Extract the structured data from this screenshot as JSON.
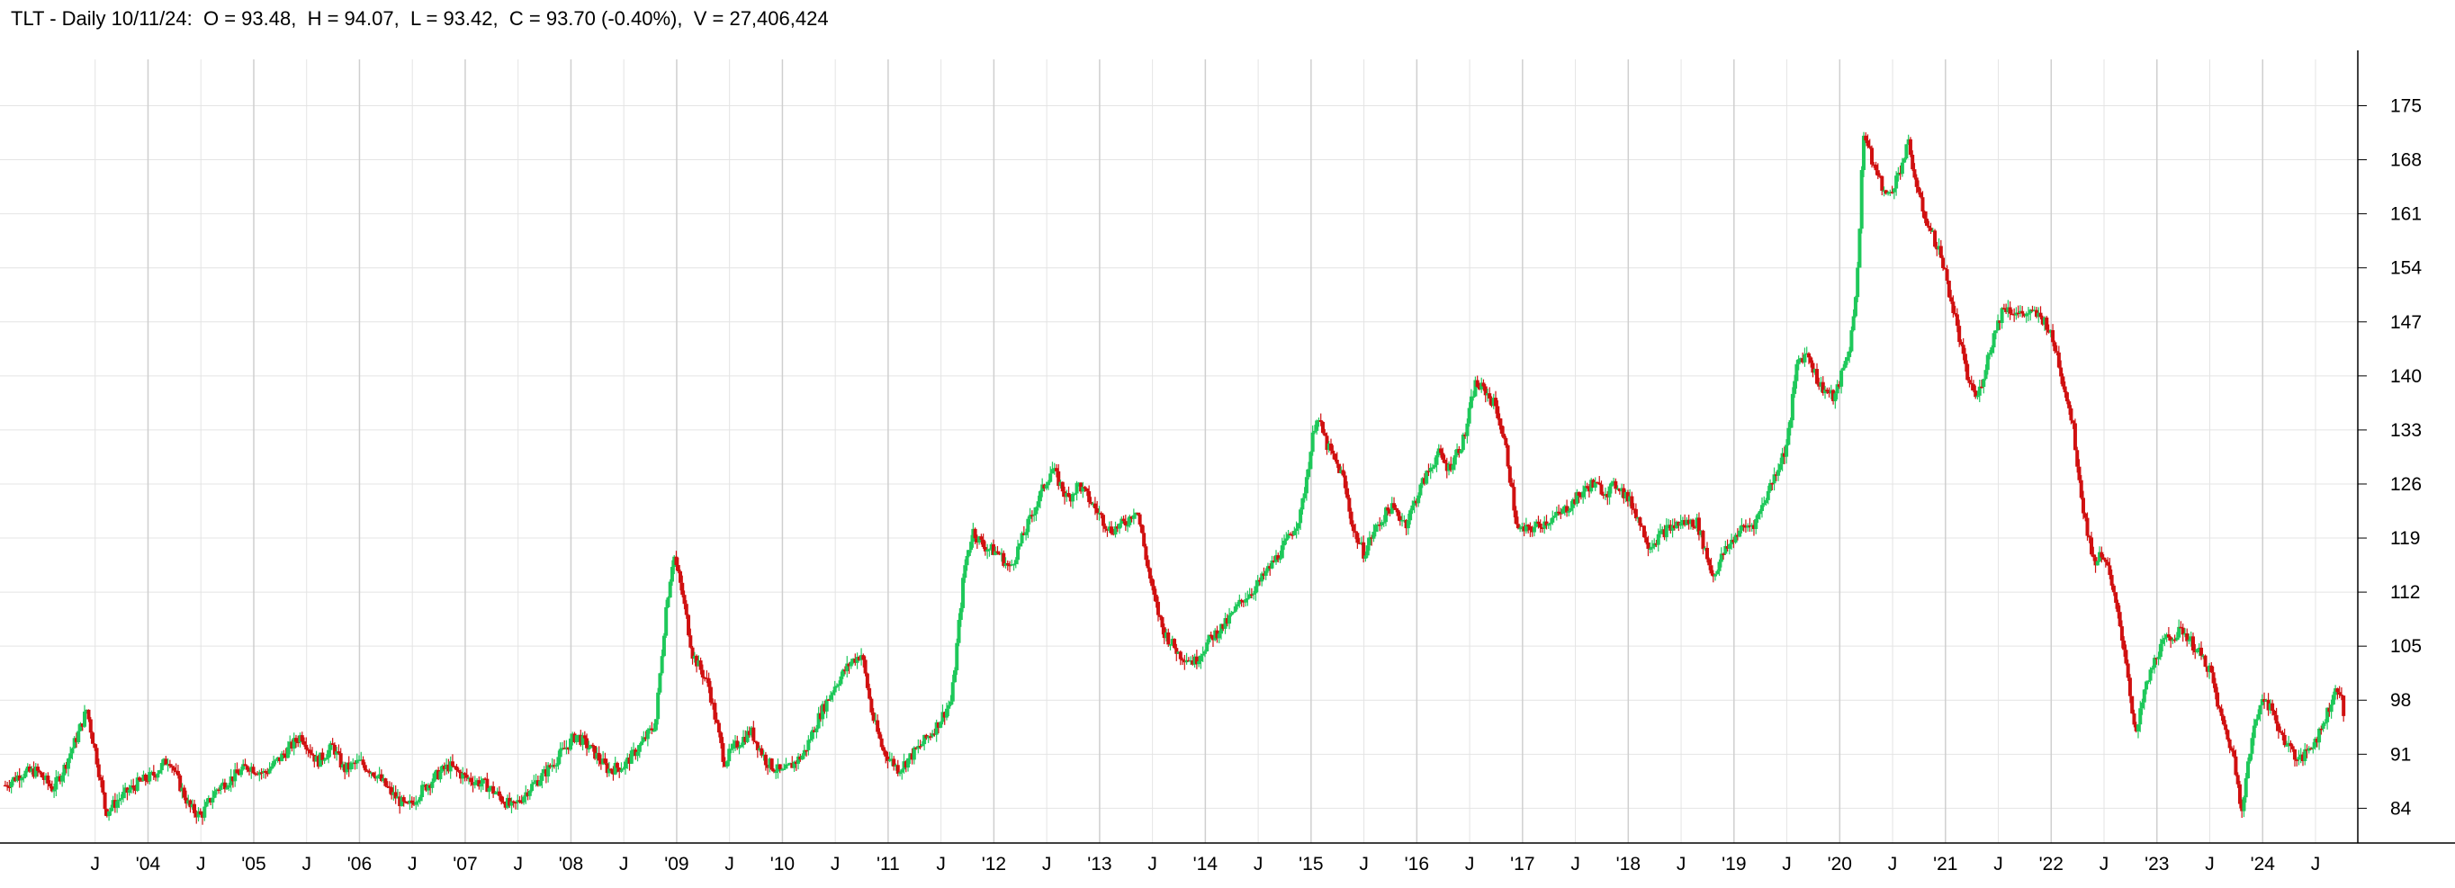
{
  "header": {
    "title": "TLT - Daily 10/11/24:",
    "open": "O = 93.48,",
    "high": "H = 94.07,",
    "low": "L = 93.42,",
    "close": "C = 93.70 (-0.40%),",
    "volume": "V = 27,406,424"
  },
  "colors": {
    "up": "#1ec85a",
    "down": "#d01010",
    "grid": "#e4e4e4",
    "axis": "#000000"
  },
  "chart_data": {
    "type": "candlestick",
    "title": "TLT - Daily 10/11/24:",
    "xlim": [
      2002.6,
      2024.9
    ],
    "ylim": [
      79.5,
      181
    ],
    "y_ticks": [
      175,
      168,
      161,
      154,
      147,
      140,
      133,
      126,
      119,
      112,
      105,
      98,
      91,
      84
    ],
    "x_ticks": [
      {
        "label": "J",
        "x": 2003.5
      },
      {
        "label": "'04",
        "x": 2004.0
      },
      {
        "label": "J",
        "x": 2004.5
      },
      {
        "label": "'05",
        "x": 2005.0
      },
      {
        "label": "J",
        "x": 2005.5
      },
      {
        "label": "'06",
        "x": 2006.0
      },
      {
        "label": "J",
        "x": 2006.5
      },
      {
        "label": "'07",
        "x": 2007.0
      },
      {
        "label": "J",
        "x": 2007.5
      },
      {
        "label": "'08",
        "x": 2008.0
      },
      {
        "label": "J",
        "x": 2008.5
      },
      {
        "label": "'09",
        "x": 2009.0
      },
      {
        "label": "J",
        "x": 2009.5
      },
      {
        "label": "'10",
        "x": 2010.0
      },
      {
        "label": "J",
        "x": 2010.5
      },
      {
        "label": "'11",
        "x": 2011.0
      },
      {
        "label": "J",
        "x": 2011.5
      },
      {
        "label": "'12",
        "x": 2012.0
      },
      {
        "label": "J",
        "x": 2012.5
      },
      {
        "label": "'13",
        "x": 2013.0
      },
      {
        "label": "J",
        "x": 2013.5
      },
      {
        "label": "'14",
        "x": 2014.0
      },
      {
        "label": "J",
        "x": 2014.5
      },
      {
        "label": "'15",
        "x": 2015.0
      },
      {
        "label": "J",
        "x": 2015.5
      },
      {
        "label": "'16",
        "x": 2016.0
      },
      {
        "label": "J",
        "x": 2016.5
      },
      {
        "label": "'17",
        "x": 2017.0
      },
      {
        "label": "J",
        "x": 2017.5
      },
      {
        "label": "'18",
        "x": 2018.0
      },
      {
        "label": "J",
        "x": 2018.5
      },
      {
        "label": "'19",
        "x": 2019.0
      },
      {
        "label": "J",
        "x": 2019.5
      },
      {
        "label": "'20",
        "x": 2020.0
      },
      {
        "label": "J",
        "x": 2020.5
      },
      {
        "label": "'21",
        "x": 2021.0
      },
      {
        "label": "J",
        "x": 2021.5
      },
      {
        "label": "'22",
        "x": 2022.0
      },
      {
        "label": "J",
        "x": 2022.5
      },
      {
        "label": "'23",
        "x": 2023.0
      },
      {
        "label": "J",
        "x": 2023.5
      },
      {
        "label": "'24",
        "x": 2024.0
      },
      {
        "label": "J",
        "x": 2024.5
      }
    ],
    "close_series": [
      [
        2002.65,
        87
      ],
      [
        2002.8,
        88.5
      ],
      [
        2002.95,
        88.8
      ],
      [
        2003.1,
        86.5
      ],
      [
        2003.2,
        89
      ],
      [
        2003.35,
        94
      ],
      [
        2003.42,
        96.8
      ],
      [
        2003.52,
        90
      ],
      [
        2003.6,
        83.5
      ],
      [
        2003.75,
        85.5
      ],
      [
        2003.9,
        87.2
      ],
      [
        2004.05,
        88.3
      ],
      [
        2004.2,
        90.5
      ],
      [
        2004.3,
        87
      ],
      [
        2004.4,
        84
      ],
      [
        2004.5,
        83
      ],
      [
        2004.65,
        86.5
      ],
      [
        2004.8,
        88
      ],
      [
        2004.95,
        89.5
      ],
      [
        2005.1,
        88.5
      ],
      [
        2005.25,
        90.5
      ],
      [
        2005.45,
        93.5
      ],
      [
        2005.6,
        90
      ],
      [
        2005.75,
        92
      ],
      [
        2005.85,
        89
      ],
      [
        2006.0,
        90
      ],
      [
        2006.15,
        88.5
      ],
      [
        2006.3,
        86
      ],
      [
        2006.45,
        84
      ],
      [
        2006.6,
        86.5
      ],
      [
        2006.75,
        88.5
      ],
      [
        2006.85,
        89.5
      ],
      [
        2007.0,
        88
      ],
      [
        2007.2,
        87
      ],
      [
        2007.45,
        84
      ],
      [
        2007.6,
        86.5
      ],
      [
        2007.75,
        88.5
      ],
      [
        2007.9,
        91
      ],
      [
        2008.05,
        93.5
      ],
      [
        2008.2,
        91.5
      ],
      [
        2008.35,
        89
      ],
      [
        2008.5,
        89.5
      ],
      [
        2008.65,
        92
      ],
      [
        2008.8,
        95
      ],
      [
        2008.9,
        110
      ],
      [
        2008.97,
        117
      ],
      [
        2009.05,
        112
      ],
      [
        2009.15,
        104
      ],
      [
        2009.3,
        100
      ],
      [
        2009.45,
        90
      ],
      [
        2009.55,
        92
      ],
      [
        2009.7,
        94
      ],
      [
        2009.85,
        90
      ],
      [
        2010.0,
        88.5
      ],
      [
        2010.2,
        91
      ],
      [
        2010.35,
        96
      ],
      [
        2010.5,
        100
      ],
      [
        2010.65,
        103
      ],
      [
        2010.75,
        104
      ],
      [
        2010.85,
        96
      ],
      [
        2010.95,
        91.5
      ],
      [
        2011.1,
        89
      ],
      [
        2011.3,
        92
      ],
      [
        2011.45,
        94.5
      ],
      [
        2011.6,
        98
      ],
      [
        2011.72,
        115
      ],
      [
        2011.8,
        120
      ],
      [
        2011.9,
        118
      ],
      [
        2012.05,
        117
      ],
      [
        2012.15,
        115
      ],
      [
        2012.3,
        120
      ],
      [
        2012.45,
        125
      ],
      [
        2012.55,
        128
      ],
      [
        2012.7,
        124
      ],
      [
        2012.8,
        126
      ],
      [
        2012.95,
        123
      ],
      [
        2013.1,
        120
      ],
      [
        2013.25,
        121
      ],
      [
        2013.35,
        123
      ],
      [
        2013.5,
        112
      ],
      [
        2013.6,
        107
      ],
      [
        2013.75,
        104
      ],
      [
        2013.9,
        103
      ],
      [
        2014.05,
        106
      ],
      [
        2014.2,
        108
      ],
      [
        2014.35,
        111
      ],
      [
        2014.5,
        113
      ],
      [
        2014.6,
        115
      ],
      [
        2014.75,
        118
      ],
      [
        2014.9,
        122
      ],
      [
        2015.05,
        135
      ],
      [
        2015.15,
        131
      ],
      [
        2015.3,
        127
      ],
      [
        2015.4,
        120
      ],
      [
        2015.5,
        117
      ],
      [
        2015.6,
        120
      ],
      [
        2015.75,
        123
      ],
      [
        2015.9,
        121
      ],
      [
        2016.05,
        126
      ],
      [
        2016.2,
        130
      ],
      [
        2016.3,
        128
      ],
      [
        2016.45,
        132
      ],
      [
        2016.55,
        139
      ],
      [
        2016.65,
        138
      ],
      [
        2016.75,
        136
      ],
      [
        2016.85,
        130
      ],
      [
        2016.95,
        120
      ],
      [
        2017.05,
        120
      ],
      [
        2017.2,
        121
      ],
      [
        2017.35,
        122
      ],
      [
        2017.5,
        124
      ],
      [
        2017.65,
        126
      ],
      [
        2017.8,
        125
      ],
      [
        2017.9,
        126
      ],
      [
        2018.05,
        123
      ],
      [
        2018.2,
        118
      ],
      [
        2018.35,
        120
      ],
      [
        2018.5,
        121
      ],
      [
        2018.65,
        121
      ],
      [
        2018.8,
        114
      ],
      [
        2018.9,
        117
      ],
      [
        2019.05,
        120
      ],
      [
        2019.2,
        121
      ],
      [
        2019.35,
        126
      ],
      [
        2019.5,
        131
      ],
      [
        2019.6,
        142
      ],
      [
        2019.7,
        143
      ],
      [
        2019.8,
        139
      ],
      [
        2019.95,
        137
      ],
      [
        2020.1,
        144
      ],
      [
        2020.18,
        155
      ],
      [
        2020.22,
        172
      ],
      [
        2020.3,
        168
      ],
      [
        2020.45,
        163
      ],
      [
        2020.55,
        166
      ],
      [
        2020.65,
        170
      ],
      [
        2020.75,
        163
      ],
      [
        2020.85,
        159
      ],
      [
        2020.95,
        156
      ],
      [
        2021.1,
        147
      ],
      [
        2021.2,
        140
      ],
      [
        2021.3,
        137
      ],
      [
        2021.45,
        145
      ],
      [
        2021.55,
        149
      ],
      [
        2021.7,
        148
      ],
      [
        2021.85,
        148
      ],
      [
        2021.95,
        147
      ],
      [
        2022.05,
        143
      ],
      [
        2022.2,
        134
      ],
      [
        2022.3,
        123
      ],
      [
        2022.4,
        116
      ],
      [
        2022.5,
        117
      ],
      [
        2022.6,
        111
      ],
      [
        2022.7,
        104
      ],
      [
        2022.8,
        93
      ],
      [
        2022.88,
        99
      ],
      [
        2023.0,
        104
      ],
      [
        2023.1,
        106
      ],
      [
        2023.25,
        107
      ],
      [
        2023.4,
        104
      ],
      [
        2023.5,
        102
      ],
      [
        2023.6,
        96
      ],
      [
        2023.72,
        91
      ],
      [
        2023.8,
        84
      ],
      [
        2023.9,
        93
      ],
      [
        2024.0,
        99
      ],
      [
        2024.1,
        96
      ],
      [
        2024.2,
        93
      ],
      [
        2024.35,
        90
      ],
      [
        2024.45,
        92
      ],
      [
        2024.55,
        94
      ],
      [
        2024.65,
        98
      ],
      [
        2024.72,
        100
      ],
      [
        2024.78,
        95
      ]
    ]
  }
}
